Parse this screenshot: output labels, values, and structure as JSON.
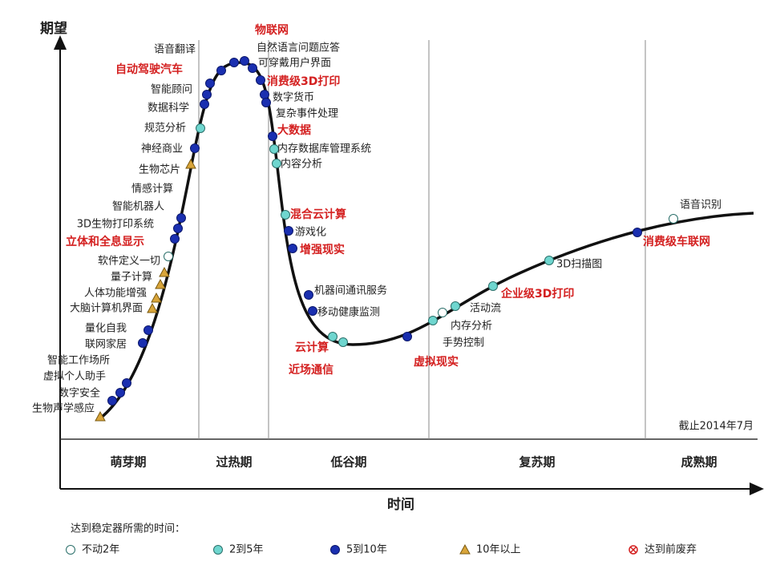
{
  "axes": {
    "y_label": "期望",
    "x_label": "时间"
  },
  "note": "截止2014年7月",
  "phases": [
    "萌芽期",
    "过热期",
    "低谷期",
    "复苏期",
    "成熟期"
  ],
  "legend": {
    "title": "达到稳定器所需的时间：",
    "items": [
      {
        "label": "不动2年",
        "marker": "hollow"
      },
      {
        "label": "2到5年",
        "marker": "teal"
      },
      {
        "label": "5到10年",
        "marker": "blue"
      },
      {
        "label": "10年以上",
        "marker": "triangle"
      },
      {
        "label": "达到前废弃",
        "marker": "obsolete"
      }
    ]
  },
  "technologies": [
    {
      "label": "生物声学感应",
      "marker": "triangle",
      "highlight": false
    },
    {
      "label": "数字安全",
      "marker": "blue",
      "highlight": false
    },
    {
      "label": "虚拟个人助手",
      "marker": "blue",
      "highlight": false
    },
    {
      "label": "智能工作场所",
      "marker": "blue",
      "highlight": false
    },
    {
      "label": "联网家居",
      "marker": "blue",
      "highlight": false
    },
    {
      "label": "量化自我",
      "marker": "blue",
      "highlight": false
    },
    {
      "label": "大脑计算机界面",
      "marker": "triangle",
      "highlight": false
    },
    {
      "label": "人体功能增强",
      "marker": "triangle",
      "highlight": false
    },
    {
      "label": "量子计算",
      "marker": "triangle",
      "highlight": false
    },
    {
      "label": "软件定义一切",
      "marker": "triangle",
      "highlight": false
    },
    {
      "label": "立体和全息显示",
      "marker": "hollow",
      "highlight": true
    },
    {
      "label": "3D生物打印系统",
      "marker": "blue",
      "highlight": false
    },
    {
      "label": "智能机器人",
      "marker": "blue",
      "highlight": false
    },
    {
      "label": "情感计算",
      "marker": "blue",
      "highlight": false
    },
    {
      "label": "生物芯片",
      "marker": "triangle",
      "highlight": false
    },
    {
      "label": "神经商业",
      "marker": "blue",
      "highlight": false
    },
    {
      "label": "规范分析",
      "marker": "teal",
      "highlight": false
    },
    {
      "label": "数据科学",
      "marker": "blue",
      "highlight": false
    },
    {
      "label": "智能顾问",
      "marker": "blue",
      "highlight": false
    },
    {
      "label": "自动驾驶汽车",
      "marker": "blue",
      "highlight": true
    },
    {
      "label": "语音翻译",
      "marker": "blue",
      "highlight": false
    },
    {
      "label": "物联网",
      "marker": "blue",
      "highlight": true
    },
    {
      "label": "自然语言问题应答",
      "marker": "blue",
      "highlight": false
    },
    {
      "label": "可穿戴用户界面",
      "marker": "blue",
      "highlight": false
    },
    {
      "label": "消费级3D打印",
      "marker": "blue",
      "highlight": true
    },
    {
      "label": "数字货币",
      "marker": "blue",
      "highlight": false
    },
    {
      "label": "复杂事件处理",
      "marker": "blue",
      "highlight": false
    },
    {
      "label": "大数据",
      "marker": "blue",
      "highlight": true
    },
    {
      "label": "内存数据库管理系统",
      "marker": "teal",
      "highlight": false
    },
    {
      "label": "内容分析",
      "marker": "teal",
      "highlight": false
    },
    {
      "label": "混合云计算",
      "marker": "teal",
      "highlight": true
    },
    {
      "label": "游戏化",
      "marker": "blue",
      "highlight": false
    },
    {
      "label": "增强现实",
      "marker": "blue",
      "highlight": true
    },
    {
      "label": "机器间通讯服务",
      "marker": "blue",
      "highlight": false
    },
    {
      "label": "移动健康监测",
      "marker": "blue",
      "highlight": false
    },
    {
      "label": "云计算",
      "marker": "teal",
      "highlight": true
    },
    {
      "label": "近场通信",
      "marker": "teal",
      "highlight": true
    },
    {
      "label": "虚拟现实",
      "marker": "blue",
      "highlight": true
    },
    {
      "label": "手势控制",
      "marker": "teal",
      "highlight": false
    },
    {
      "label": "内存分析",
      "marker": "hollow",
      "highlight": false
    },
    {
      "label": "活动流",
      "marker": "teal",
      "highlight": false
    },
    {
      "label": "企业级3D打印",
      "marker": "teal",
      "highlight": true
    },
    {
      "label": "3D扫描图",
      "marker": "teal",
      "highlight": false
    },
    {
      "label": "消费级车联网",
      "marker": "blue",
      "highlight": true
    },
    {
      "label": "语音识别",
      "marker": "hollow",
      "highlight": false
    }
  ]
}
